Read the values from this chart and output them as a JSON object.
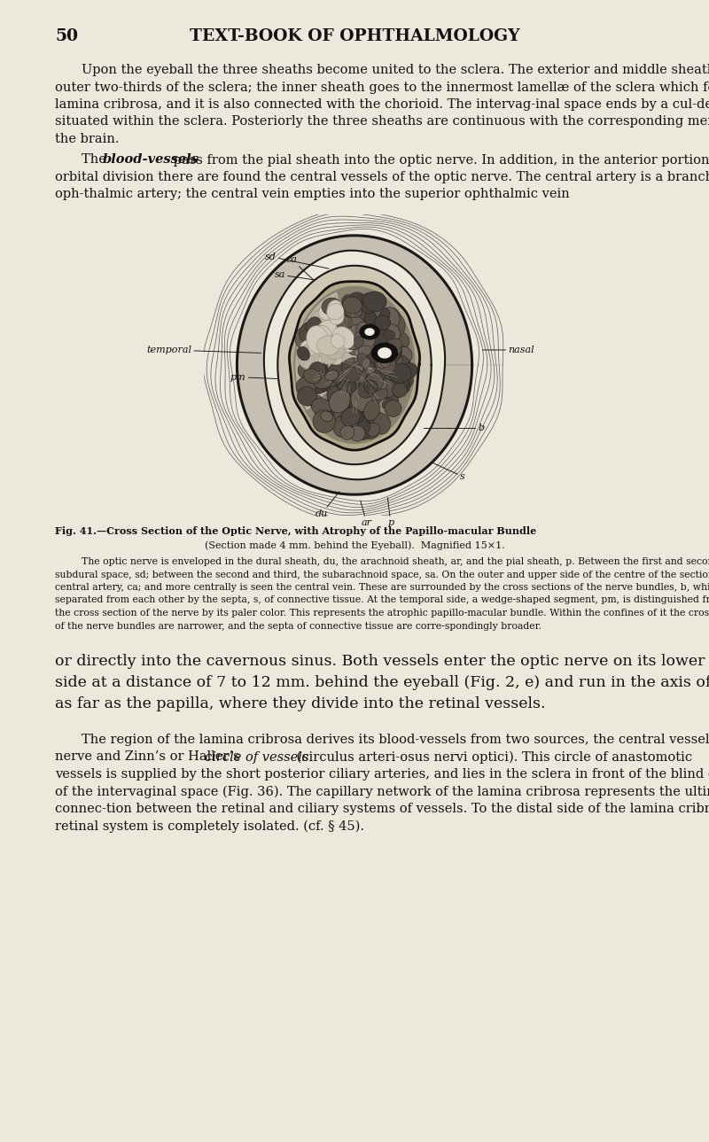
{
  "page_number": "50",
  "header": "TEXT-BOOK OF OPHTHALMOLOGY",
  "bg_color": "#ede8dc",
  "text_color": "#111111",
  "para1_indent": "Upon the eyeball the three sheaths become united to the sclera.  The exterior and middle sheaths pass into the outer two-thirds of the sclera; the inner sheath goes to the innermost lamellæ of the sclera which form the lamina cribrosa, and it is also connected with the chorioid.  The intervag-inal space ends by a cul-de-sac situated within the sclera.  Posteriorly the three sheaths are continuous with the corresponding membranes of the brain.",
  "para2_prefix": "The ",
  "para2_italic": "blood-vessels",
  "para2_rest": " pass from the pial sheath into the optic nerve.  In addition, in the anterior portion of the orbital division there are found the central vessels of the optic nerve.  The central artery is a branch of the oph-thalmic artery; the central vein empties into the superior ophthalmic vein",
  "fig_caption_line1": "Fig. 41.—Cross Section of the Optic Nerve, with Atrophy of the Papillo-macular Bundle",
  "fig_caption_line2": "(Section made 4 mm. behind the Eyeball).  Magnified 15×1.",
  "fig_desc_indent": "The optic nerve is enveloped in the dural sheath, ",
  "fig_desc_rest": "du, the arachnoid sheath, ar, and the pial sheath, p.  Between the first and second is found the subdural space, sd; between the second and third, the subarachnoid space, sa.  On the outer and upper side of the centre of the section is seen the central artery, ca; and more centrally is seen the central vein.  These are surrounded by the cross sections of the nerve bundles, b, which are separated from each other by the septa, s, of connective tissue.  At the temporal side, a wedge-shaped segment, pm, is distinguished from the rest of the cross section of the nerve by its paler color.  This represents the atrophic papillo-macular bundle.  Within the confines of it the cross sections of the nerve bundles are narrower, and the septa of connective tissue are corre-spondingly broader.",
  "para3": "or directly into the cavernous sinus.  Both vessels enter the optic nerve on its lower and inner side at a distance of 7 to 12 mm. behind the eyeball (Fig. 2, e) and run in the axis of the nerve as far as the papilla, where they divide into the retinal vessels.",
  "para4_indent": "The region of the lamina cribrosa derives its blood-vessels from two sources, the central vessels of the optic nerve and Zinn’s or Haller’s ",
  "para4_italic": "circle of vessels",
  "para4_rest": " (circulus arteri-osus nervi optici).  This circle of anastomotic vessels is supplied by the short posterior ciliary arteries, and lies in the sclera in front of the blind end of the intervaginal space (Fig. 36).  The capillary network of the lamina cribrosa represents the ultimate connec-tion between the retinal and ciliary systems of vessels.  To the distal side of the lamina cribrosa the retinal system is completely isolated. (cf. § 45)."
}
